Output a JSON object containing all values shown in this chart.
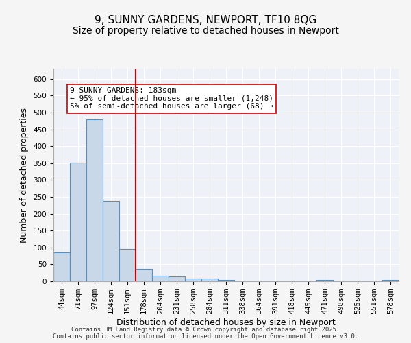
{
  "title1": "9, SUNNY GARDENS, NEWPORT, TF10 8QG",
  "title2": "Size of property relative to detached houses in Newport",
  "xlabel": "Distribution of detached houses by size in Newport",
  "ylabel": "Number of detached properties",
  "categories": [
    "44sqm",
    "71sqm",
    "97sqm",
    "124sqm",
    "151sqm",
    "178sqm",
    "204sqm",
    "231sqm",
    "258sqm",
    "284sqm",
    "311sqm",
    "338sqm",
    "364sqm",
    "391sqm",
    "418sqm",
    "445sqm",
    "471sqm",
    "498sqm",
    "525sqm",
    "551sqm",
    "578sqm"
  ],
  "values": [
    85,
    352,
    480,
    237,
    96,
    37,
    16,
    14,
    8,
    8,
    5,
    0,
    0,
    0,
    0,
    0,
    5,
    0,
    0,
    0,
    5
  ],
  "bar_color": "#c8d8e8",
  "bar_edge_color": "#5b8db8",
  "vline_x": 5,
  "vline_color": "#cc0000",
  "annotation_text": "9 SUNNY GARDENS: 183sqm\n← 95% of detached houses are smaller (1,248)\n5% of semi-detached houses are larger (68) →",
  "annotation_box_color": "#ffffff",
  "annotation_box_edge_color": "#cc0000",
  "annotation_fontsize": 8,
  "ylim": [
    0,
    630
  ],
  "yticks": [
    0,
    50,
    100,
    150,
    200,
    250,
    300,
    350,
    400,
    450,
    500,
    550,
    600
  ],
  "background_color": "#eef2f8",
  "grid_color": "#ffffff",
  "footer": "Contains HM Land Registry data © Crown copyright and database right 2025.\nContains public sector information licensed under the Open Government Licence v3.0.",
  "title_fontsize": 11,
  "subtitle_fontsize": 10,
  "axis_label_fontsize": 9,
  "tick_fontsize": 7.5
}
